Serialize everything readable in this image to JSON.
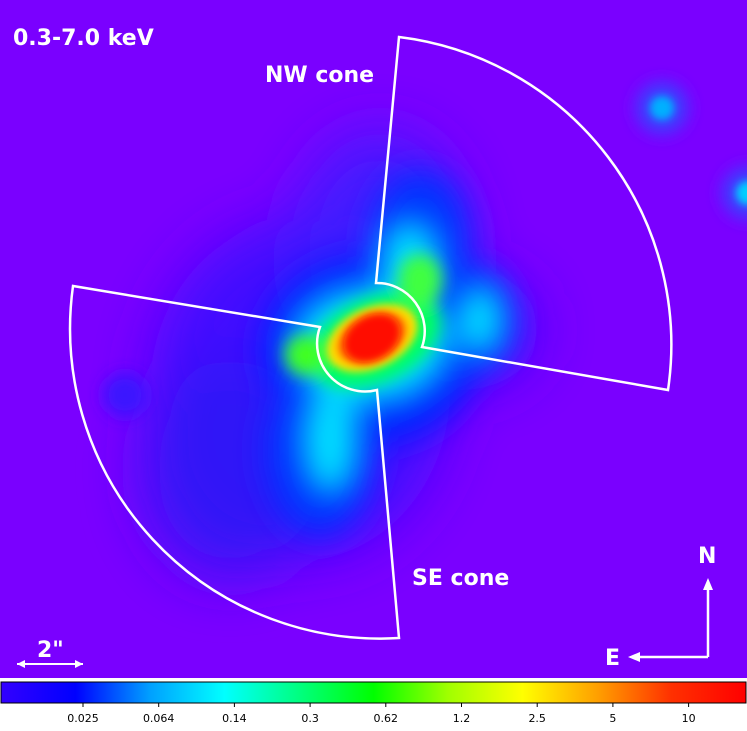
{
  "image": {
    "band_label": "0.3-7.0 keV",
    "region_labels": {
      "nw": "NW cone",
      "se": "SE cone"
    },
    "scale_bar_label": "2\"",
    "compass": {
      "north": "N",
      "east": "E"
    }
  },
  "colorbar": {
    "tick_labels": [
      "0.025",
      "0.064",
      "0.14",
      "0.3",
      "0.62",
      "1.2",
      "2.5",
      "5",
      "10"
    ],
    "colors": [
      "#3300ff",
      "#0000ff",
      "#00a0ff",
      "#00ffff",
      "#00ff80",
      "#00ff00",
      "#a0ff00",
      "#ffff00",
      "#ffa000",
      "#ff3000",
      "#ff0000"
    ]
  },
  "colors": {
    "background": "#7a00ff",
    "annotation": "#ffffff"
  }
}
